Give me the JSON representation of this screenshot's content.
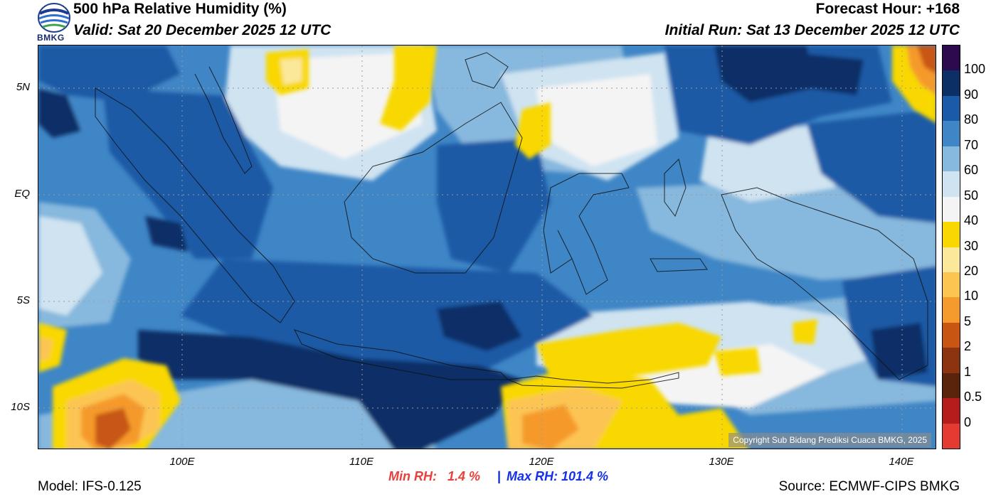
{
  "header": {
    "title": "500 hPa Relative Humidity (%)",
    "valid": "Valid: Sat 20 December 2025 12 UTC",
    "forecast_hour": "Forecast Hour: +168",
    "initial_run": "Initial Run: Sat 13 December 2025 12 UTC",
    "logo_text": "BMKG"
  },
  "map": {
    "lat_labels": [
      "5N",
      "EQ",
      "5S",
      "10S"
    ],
    "lon_labels": [
      "100E",
      "110E",
      "120E",
      "130E",
      "140E"
    ],
    "copyright": "Copyright Sub Bidang Prediksi Cuaca BMKG, 2025"
  },
  "colorbar": {
    "labels": [
      "100",
      "90",
      "80",
      "70",
      "60",
      "50",
      "40",
      "30",
      "20",
      "10",
      "5",
      "2",
      "1",
      "0.5",
      "0"
    ],
    "colors": [
      "#2d0a4e",
      "#0c2f66",
      "#1a5aa6",
      "#3f86c6",
      "#87b8dd",
      "#cfe3f1",
      "#f4f4f4",
      "#f8d800",
      "#fbe89b",
      "#fcc552",
      "#f59a2c",
      "#c85612",
      "#8c3310",
      "#5a230c",
      "#b71c1c",
      "#e53a32"
    ]
  },
  "stats": {
    "min_rh": "Min RH:   1.4 %",
    "separator": "|",
    "max_rh": "Max RH: 101.4 %"
  },
  "footer": {
    "model": "Model: IFS-0.125",
    "source": "Source: ECMWF-CIPS BMKG"
  }
}
